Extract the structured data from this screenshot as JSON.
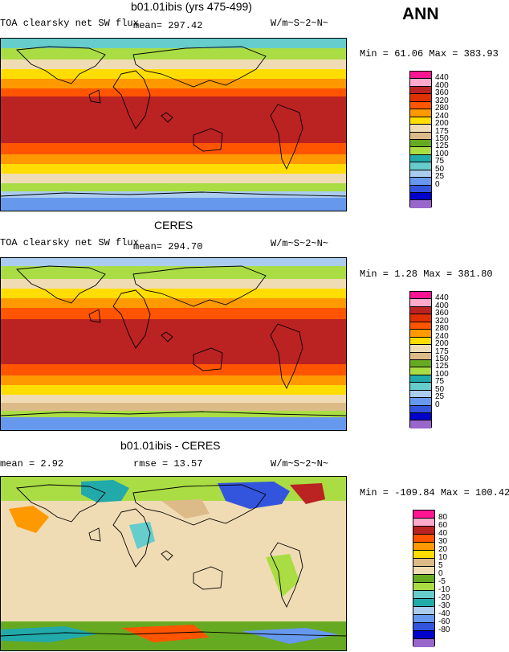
{
  "season": "ANN",
  "colors": {
    "abs_scale": [
      "#9966cc",
      "#0000cc",
      "#3355dd",
      "#6699ee",
      "#aaccee",
      "#66cccc",
      "#22aaaa",
      "#aadd44",
      "#66aa22",
      "#ddbb88",
      "#f0dcb4",
      "#ffdd00",
      "#ff9900",
      "#ff5500",
      "#e03000",
      "#bb2222",
      "#ffaacc",
      "#ff1493"
    ],
    "diff_scale": [
      "#9966cc",
      "#0000cc",
      "#3355dd",
      "#6699ee",
      "#aaccee",
      "#22aaaa",
      "#66cccc",
      "#aadd44",
      "#66aa22",
      "#f0dcb4",
      "#ddbb88",
      "#ffdd00",
      "#ff9900",
      "#ff5500",
      "#bb2222",
      "#ffaacc",
      "#ff1493"
    ]
  },
  "panels": [
    {
      "title": "b01.01ibis (yrs 475-499)",
      "left_label": "TOA clearsky net SW flux",
      "mean_label": "mean= 297.42",
      "units": "W/m~S~2~N~",
      "minmax": "Min =  61.06 Max = 383.93",
      "colorbar_labels": [
        "440",
        "400",
        "360",
        "320",
        "280",
        "240",
        "200",
        "175",
        "150",
        "125",
        "100",
        "75",
        "50",
        "25",
        "0"
      ]
    },
    {
      "title": "CERES",
      "left_label": "TOA clearsky net SW flux",
      "mean_label": "mean= 294.70",
      "units": "W/m~S~2~N~",
      "minmax": "Min =   1.28 Max = 381.80",
      "colorbar_labels": [
        "440",
        "400",
        "360",
        "320",
        "280",
        "240",
        "200",
        "175",
        "150",
        "125",
        "100",
        "75",
        "50",
        "25",
        "0"
      ]
    },
    {
      "title": "b01.01ibis - CERES",
      "left_label": "mean =   2.92",
      "mean_label": "rmse =  13.57",
      "units": "W/m~S~2~N~",
      "minmax": "Min = -109.84 Max = 100.42",
      "colorbar_labels": [
        "80",
        "60",
        "40",
        "30",
        "20",
        "10",
        "5",
        "0",
        "-5",
        "-10",
        "-20",
        "-30",
        "-40",
        "-60",
        "-80"
      ]
    }
  ],
  "chart_data": [
    {
      "type": "heatmap",
      "title": "b01.01ibis (yrs 475-499)",
      "variable": "TOA clearsky net SW flux",
      "units": "W/m~S~2~N~",
      "mean": 297.42,
      "min": 61.06,
      "max": 383.93,
      "contour_levels": [
        0,
        25,
        50,
        75,
        100,
        125,
        150,
        175,
        200,
        240,
        280,
        320,
        360,
        400,
        440
      ],
      "latitude_bands": [
        {
          "lat_range": [
            60,
            90
          ],
          "value": 180
        },
        {
          "lat_range": [
            40,
            60
          ],
          "value": 250
        },
        {
          "lat_range": [
            20,
            40
          ],
          "value": 330
        },
        {
          "lat_range": [
            -20,
            20
          ],
          "value": 370
        },
        {
          "lat_range": [
            -40,
            -20
          ],
          "value": 330
        },
        {
          "lat_range": [
            -60,
            -40
          ],
          "value": 240
        },
        {
          "lat_range": [
            -90,
            -60
          ],
          "value": 80
        }
      ]
    },
    {
      "type": "heatmap",
      "title": "CERES",
      "variable": "TOA clearsky net SW flux",
      "units": "W/m~S~2~N~",
      "mean": 294.7,
      "min": 1.28,
      "max": 381.8,
      "contour_levels": [
        0,
        25,
        50,
        75,
        100,
        125,
        150,
        175,
        200,
        240,
        280,
        320,
        360,
        400,
        440
      ],
      "latitude_bands": [
        {
          "lat_range": [
            60,
            90
          ],
          "value": 170
        },
        {
          "lat_range": [
            40,
            60
          ],
          "value": 250
        },
        {
          "lat_range": [
            20,
            40
          ],
          "value": 330
        },
        {
          "lat_range": [
            -20,
            20
          ],
          "value": 370
        },
        {
          "lat_range": [
            -40,
            -20
          ],
          "value": 330
        },
        {
          "lat_range": [
            -60,
            -40
          ],
          "value": 230
        },
        {
          "lat_range": [
            -90,
            -60
          ],
          "value": 60
        }
      ]
    },
    {
      "type": "heatmap",
      "title": "b01.01ibis - CERES",
      "units": "W/m~S~2~N~",
      "mean": 2.92,
      "rmse": 13.57,
      "min": -109.84,
      "max": 100.42,
      "contour_levels": [
        -80,
        -60,
        -40,
        -30,
        -20,
        -10,
        -5,
        0,
        5,
        10,
        20,
        30,
        40,
        60,
        80
      ],
      "latitude_bands": [
        {
          "lat_range": [
            60,
            90
          ],
          "value": -10
        },
        {
          "lat_range": [
            40,
            60
          ],
          "value": 0
        },
        {
          "lat_range": [
            -40,
            40
          ],
          "value": 3
        },
        {
          "lat_range": [
            -60,
            -40
          ],
          "value": 5
        },
        {
          "lat_range": [
            -90,
            -60
          ],
          "value": 20
        }
      ]
    }
  ]
}
